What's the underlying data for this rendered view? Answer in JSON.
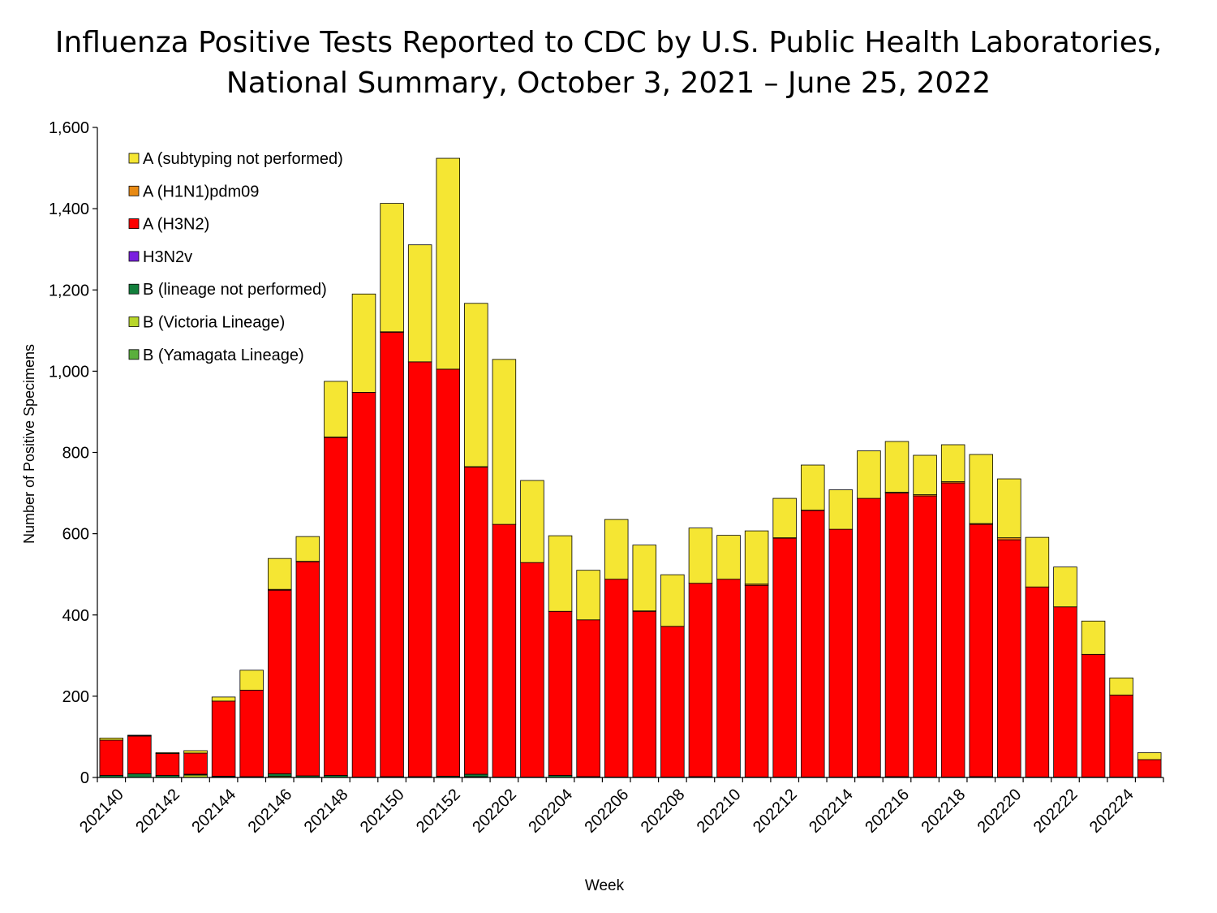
{
  "chart_data": {
    "type": "bar",
    "stacked": true,
    "title_line1": "Influenza Positive Tests Reported to CDC by U.S. Public Health Laboratories,",
    "title_line2": "National Summary, October 3, 2021 – June 25, 2022",
    "xlabel": "Week",
    "ylabel": "Number of Positive Specimens",
    "ylim": [
      0,
      1600
    ],
    "yticks": [
      0,
      200,
      400,
      600,
      800,
      1000,
      1200,
      1400,
      1600
    ],
    "ytick_labels": [
      "0",
      "200",
      "400",
      "600",
      "800",
      "1,000",
      "1,200",
      "1,400",
      "1,600"
    ],
    "legend_position": "top-left",
    "categories": [
      "202140",
      "202141",
      "202142",
      "202143",
      "202144",
      "202145",
      "202146",
      "202147",
      "202148",
      "202149",
      "202150",
      "202151",
      "202152",
      "202201",
      "202202",
      "202203",
      "202204",
      "202205",
      "202206",
      "202207",
      "202208",
      "202209",
      "202210",
      "202211",
      "202212",
      "202213",
      "202214",
      "202215",
      "202216",
      "202217",
      "202218",
      "202219",
      "202220",
      "202221",
      "202222",
      "202223",
      "202224",
      "202225"
    ],
    "xtick_labels": [
      "202140",
      "202142",
      "202144",
      "202146",
      "202148",
      "202150",
      "202152",
      "202202",
      "202204",
      "202206",
      "202208",
      "202210",
      "202212",
      "202214",
      "202216",
      "202218",
      "202220",
      "202222",
      "202224"
    ],
    "series": [
      {
        "name": "B (Yamagata Lineage)",
        "color": "#5aaf3c",
        "values": [
          0,
          0,
          0,
          0,
          0,
          0,
          0,
          0,
          0,
          0,
          0,
          0,
          0,
          0,
          0,
          0,
          0,
          0,
          0,
          0,
          0,
          0,
          0,
          0,
          0,
          0,
          0,
          0,
          0,
          0,
          0,
          0,
          0,
          0,
          0,
          0,
          0,
          0
        ]
      },
      {
        "name": "B (Victoria Lineage)",
        "color": "#b8d629",
        "values": [
          0,
          0,
          0,
          6,
          1,
          0,
          3,
          0,
          0,
          0,
          0,
          0,
          0,
          2,
          0,
          0,
          0,
          0,
          0,
          0,
          0,
          0,
          0,
          0,
          0,
          0,
          0,
          0,
          0,
          0,
          0,
          0,
          0,
          0,
          0,
          0,
          0,
          0
        ]
      },
      {
        "name": "B (lineage not performed)",
        "color": "#127f3c",
        "values": [
          5,
          9,
          5,
          2,
          2,
          2,
          6,
          4,
          5,
          1,
          2,
          2,
          3,
          6,
          1,
          1,
          5,
          2,
          1,
          1,
          1,
          2,
          1,
          1,
          1,
          1,
          1,
          2,
          2,
          1,
          1,
          2,
          1,
          1,
          1,
          1,
          1,
          0
        ]
      },
      {
        "name": "H3N2v",
        "color": "#7a1fdf",
        "values": [
          0,
          0,
          0,
          0,
          0,
          0,
          0,
          0,
          0,
          0,
          0,
          0,
          0,
          0,
          0,
          0,
          0,
          0,
          0,
          0,
          0,
          0,
          0,
          0,
          0,
          0,
          0,
          0,
          0,
          0,
          0,
          0,
          0,
          0,
          0,
          0,
          0,
          0
        ]
      },
      {
        "name": "A (H3N2)",
        "color": "#ff0000",
        "values": [
          87,
          93,
          54,
          52,
          185,
          213,
          452,
          527,
          832,
          947,
          1094,
          1021,
          1002,
          756,
          622,
          528,
          404,
          386,
          487,
          408,
          371,
          476,
          487,
          472,
          588,
          656,
          610,
          685,
          698,
          692,
          724,
          621,
          584,
          468,
          419,
          302,
          202,
          44
        ]
      },
      {
        "name": "A (H1N1)pdm09",
        "color": "#e88a14",
        "values": [
          0,
          1,
          0,
          0,
          0,
          0,
          2,
          1,
          1,
          0,
          1,
          0,
          0,
          1,
          0,
          0,
          0,
          0,
          0,
          1,
          0,
          0,
          0,
          3,
          1,
          1,
          0,
          0,
          2,
          3,
          3,
          2,
          5,
          0,
          0,
          0,
          0,
          0
        ]
      },
      {
        "name": "A (subtyping not performed)",
        "color": "#f5e633",
        "values": [
          5,
          1,
          2,
          6,
          10,
          49,
          76,
          61,
          137,
          242,
          316,
          288,
          519,
          402,
          406,
          202,
          186,
          122,
          147,
          162,
          127,
          136,
          108,
          131,
          97,
          111,
          97,
          117,
          125,
          97,
          91,
          170,
          145,
          122,
          98,
          82,
          42,
          17
        ]
      }
    ],
    "legend_order": [
      "A (subtyping not performed)",
      "A (H1N1)pdm09",
      "A (H3N2)",
      "H3N2v",
      "B (lineage not performed)",
      "B (Victoria Lineage)",
      "B (Yamagata Lineage)"
    ]
  }
}
